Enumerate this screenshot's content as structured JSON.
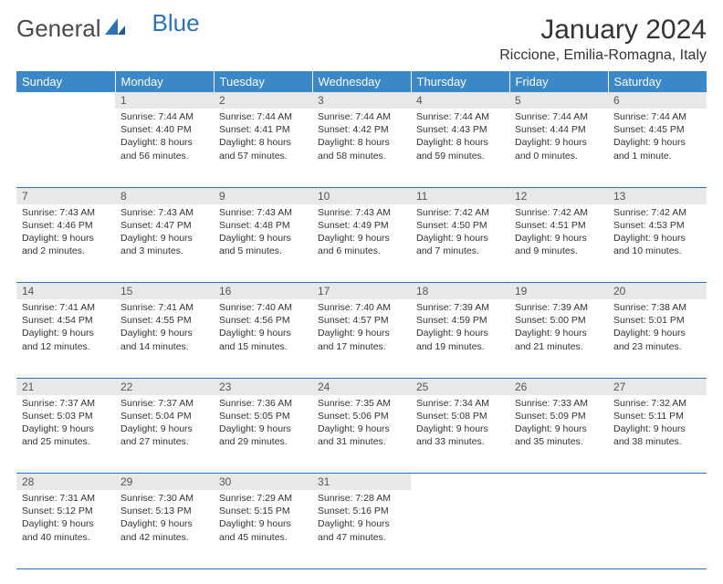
{
  "logo": {
    "part1": "General",
    "part2": "Blue"
  },
  "title": "January 2024",
  "location": "Riccione, Emilia-Romagna, Italy",
  "colors": {
    "header_bg": "#3b88c9",
    "header_text": "#ffffff",
    "daynum_bg": "#e8e8e8",
    "border": "#2b74b8",
    "logo_gray": "#4a4a4a",
    "logo_blue": "#2b74b8",
    "text": "#333333"
  },
  "day_headers": [
    "Sunday",
    "Monday",
    "Tuesday",
    "Wednesday",
    "Thursday",
    "Friday",
    "Saturday"
  ],
  "weeks": [
    [
      {
        "n": "",
        "lines": []
      },
      {
        "n": "1",
        "lines": [
          "Sunrise: 7:44 AM",
          "Sunset: 4:40 PM",
          "Daylight: 8 hours",
          "and 56 minutes."
        ]
      },
      {
        "n": "2",
        "lines": [
          "Sunrise: 7:44 AM",
          "Sunset: 4:41 PM",
          "Daylight: 8 hours",
          "and 57 minutes."
        ]
      },
      {
        "n": "3",
        "lines": [
          "Sunrise: 7:44 AM",
          "Sunset: 4:42 PM",
          "Daylight: 8 hours",
          "and 58 minutes."
        ]
      },
      {
        "n": "4",
        "lines": [
          "Sunrise: 7:44 AM",
          "Sunset: 4:43 PM",
          "Daylight: 8 hours",
          "and 59 minutes."
        ]
      },
      {
        "n": "5",
        "lines": [
          "Sunrise: 7:44 AM",
          "Sunset: 4:44 PM",
          "Daylight: 9 hours",
          "and 0 minutes."
        ]
      },
      {
        "n": "6",
        "lines": [
          "Sunrise: 7:44 AM",
          "Sunset: 4:45 PM",
          "Daylight: 9 hours",
          "and 1 minute."
        ]
      }
    ],
    [
      {
        "n": "7",
        "lines": [
          "Sunrise: 7:43 AM",
          "Sunset: 4:46 PM",
          "Daylight: 9 hours",
          "and 2 minutes."
        ]
      },
      {
        "n": "8",
        "lines": [
          "Sunrise: 7:43 AM",
          "Sunset: 4:47 PM",
          "Daylight: 9 hours",
          "and 3 minutes."
        ]
      },
      {
        "n": "9",
        "lines": [
          "Sunrise: 7:43 AM",
          "Sunset: 4:48 PM",
          "Daylight: 9 hours",
          "and 5 minutes."
        ]
      },
      {
        "n": "10",
        "lines": [
          "Sunrise: 7:43 AM",
          "Sunset: 4:49 PM",
          "Daylight: 9 hours",
          "and 6 minutes."
        ]
      },
      {
        "n": "11",
        "lines": [
          "Sunrise: 7:42 AM",
          "Sunset: 4:50 PM",
          "Daylight: 9 hours",
          "and 7 minutes."
        ]
      },
      {
        "n": "12",
        "lines": [
          "Sunrise: 7:42 AM",
          "Sunset: 4:51 PM",
          "Daylight: 9 hours",
          "and 9 minutes."
        ]
      },
      {
        "n": "13",
        "lines": [
          "Sunrise: 7:42 AM",
          "Sunset: 4:53 PM",
          "Daylight: 9 hours",
          "and 10 minutes."
        ]
      }
    ],
    [
      {
        "n": "14",
        "lines": [
          "Sunrise: 7:41 AM",
          "Sunset: 4:54 PM",
          "Daylight: 9 hours",
          "and 12 minutes."
        ]
      },
      {
        "n": "15",
        "lines": [
          "Sunrise: 7:41 AM",
          "Sunset: 4:55 PM",
          "Daylight: 9 hours",
          "and 14 minutes."
        ]
      },
      {
        "n": "16",
        "lines": [
          "Sunrise: 7:40 AM",
          "Sunset: 4:56 PM",
          "Daylight: 9 hours",
          "and 15 minutes."
        ]
      },
      {
        "n": "17",
        "lines": [
          "Sunrise: 7:40 AM",
          "Sunset: 4:57 PM",
          "Daylight: 9 hours",
          "and 17 minutes."
        ]
      },
      {
        "n": "18",
        "lines": [
          "Sunrise: 7:39 AM",
          "Sunset: 4:59 PM",
          "Daylight: 9 hours",
          "and 19 minutes."
        ]
      },
      {
        "n": "19",
        "lines": [
          "Sunrise: 7:39 AM",
          "Sunset: 5:00 PM",
          "Daylight: 9 hours",
          "and 21 minutes."
        ]
      },
      {
        "n": "20",
        "lines": [
          "Sunrise: 7:38 AM",
          "Sunset: 5:01 PM",
          "Daylight: 9 hours",
          "and 23 minutes."
        ]
      }
    ],
    [
      {
        "n": "21",
        "lines": [
          "Sunrise: 7:37 AM",
          "Sunset: 5:03 PM",
          "Daylight: 9 hours",
          "and 25 minutes."
        ]
      },
      {
        "n": "22",
        "lines": [
          "Sunrise: 7:37 AM",
          "Sunset: 5:04 PM",
          "Daylight: 9 hours",
          "and 27 minutes."
        ]
      },
      {
        "n": "23",
        "lines": [
          "Sunrise: 7:36 AM",
          "Sunset: 5:05 PM",
          "Daylight: 9 hours",
          "and 29 minutes."
        ]
      },
      {
        "n": "24",
        "lines": [
          "Sunrise: 7:35 AM",
          "Sunset: 5:06 PM",
          "Daylight: 9 hours",
          "and 31 minutes."
        ]
      },
      {
        "n": "25",
        "lines": [
          "Sunrise: 7:34 AM",
          "Sunset: 5:08 PM",
          "Daylight: 9 hours",
          "and 33 minutes."
        ]
      },
      {
        "n": "26",
        "lines": [
          "Sunrise: 7:33 AM",
          "Sunset: 5:09 PM",
          "Daylight: 9 hours",
          "and 35 minutes."
        ]
      },
      {
        "n": "27",
        "lines": [
          "Sunrise: 7:32 AM",
          "Sunset: 5:11 PM",
          "Daylight: 9 hours",
          "and 38 minutes."
        ]
      }
    ],
    [
      {
        "n": "28",
        "lines": [
          "Sunrise: 7:31 AM",
          "Sunset: 5:12 PM",
          "Daylight: 9 hours",
          "and 40 minutes."
        ]
      },
      {
        "n": "29",
        "lines": [
          "Sunrise: 7:30 AM",
          "Sunset: 5:13 PM",
          "Daylight: 9 hours",
          "and 42 minutes."
        ]
      },
      {
        "n": "30",
        "lines": [
          "Sunrise: 7:29 AM",
          "Sunset: 5:15 PM",
          "Daylight: 9 hours",
          "and 45 minutes."
        ]
      },
      {
        "n": "31",
        "lines": [
          "Sunrise: 7:28 AM",
          "Sunset: 5:16 PM",
          "Daylight: 9 hours",
          "and 47 minutes."
        ]
      },
      {
        "n": "",
        "lines": []
      },
      {
        "n": "",
        "lines": []
      },
      {
        "n": "",
        "lines": []
      }
    ]
  ]
}
